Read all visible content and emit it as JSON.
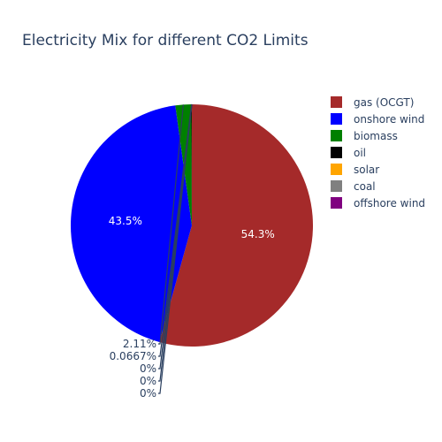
{
  "chart_data": {
    "type": "pie",
    "title": "Electricity Mix for different CO2 Limits",
    "sort": "clockwise from top",
    "legend_position": "top-right",
    "slices": [
      {
        "label": "gas (OCGT)",
        "percent": 54.3,
        "percent_label": "54.3%",
        "color": "#a52a2a",
        "text_position": "inside"
      },
      {
        "label": "onshore wind",
        "percent": 43.5,
        "percent_label": "43.5%",
        "color": "#0000ff",
        "text_position": "inside"
      },
      {
        "label": "biomass",
        "percent": 2.11,
        "percent_label": "2.11%",
        "color": "#008000",
        "text_position": "outside"
      },
      {
        "label": "oil",
        "percent": 0.0667,
        "percent_label": "0.0667%",
        "color": "#000000",
        "text_position": "outside"
      },
      {
        "label": "solar",
        "percent": 0,
        "percent_label": "0%",
        "color": "#ffa500",
        "text_position": "outside"
      },
      {
        "label": "coal",
        "percent": 0,
        "percent_label": "0%",
        "color": "#808080",
        "text_position": "outside"
      },
      {
        "label": "offshore wind",
        "percent": 0,
        "percent_label": "0%",
        "color": "#800080",
        "text_position": "outside"
      }
    ]
  }
}
